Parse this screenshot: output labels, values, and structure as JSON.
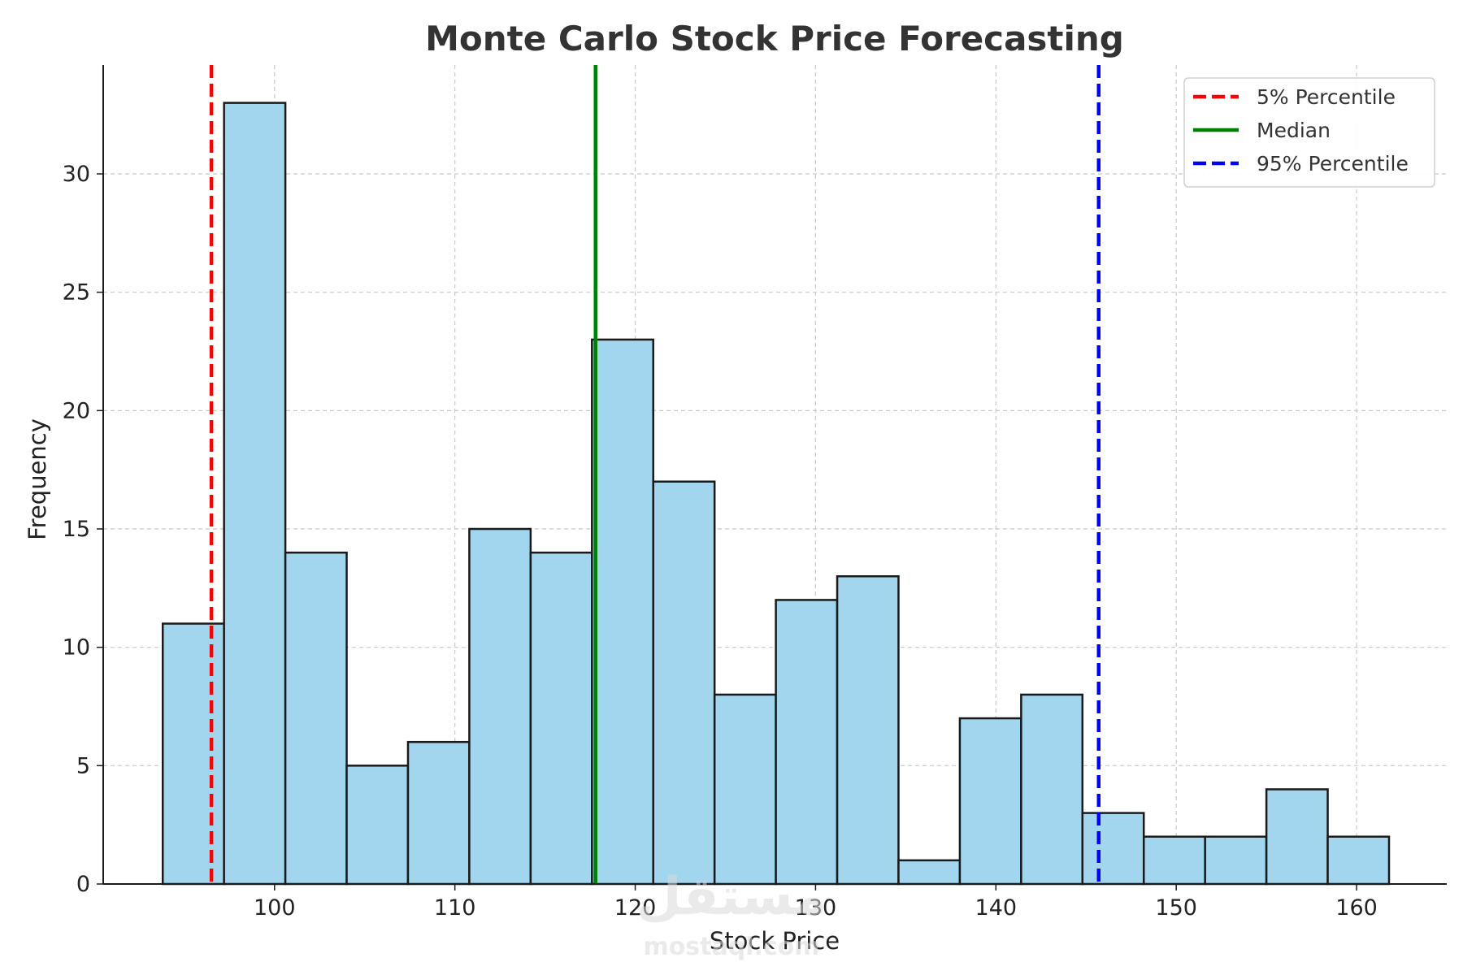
{
  "chart_data": {
    "type": "bar",
    "subtype": "histogram",
    "title": "Monte Carlo Stock Price Forecasting",
    "xlabel": "Stock Price",
    "ylabel": "Frequency",
    "xlim": [
      90.5,
      165.0
    ],
    "ylim": [
      0,
      34.6
    ],
    "xticks": [
      100,
      110,
      120,
      130,
      140,
      150,
      160
    ],
    "yticks": [
      0,
      5,
      10,
      15,
      20,
      25,
      30
    ],
    "grid": true,
    "bar_color": "#a1d6ee",
    "edge_color": "#1a1a1a",
    "bins": [
      {
        "start": 93.8,
        "end": 97.2,
        "count": 11
      },
      {
        "start": 97.2,
        "end": 100.6,
        "count": 33
      },
      {
        "start": 100.6,
        "end": 104.0,
        "count": 14
      },
      {
        "start": 104.0,
        "end": 107.4,
        "count": 5
      },
      {
        "start": 107.4,
        "end": 110.8,
        "count": 6
      },
      {
        "start": 110.8,
        "end": 114.2,
        "count": 15
      },
      {
        "start": 114.2,
        "end": 117.6,
        "count": 14
      },
      {
        "start": 117.6,
        "end": 121.0,
        "count": 23
      },
      {
        "start": 121.0,
        "end": 124.4,
        "count": 17
      },
      {
        "start": 124.4,
        "end": 127.8,
        "count": 8
      },
      {
        "start": 127.8,
        "end": 131.2,
        "count": 12
      },
      {
        "start": 131.2,
        "end": 134.6,
        "count": 13
      },
      {
        "start": 134.6,
        "end": 138.0,
        "count": 1
      },
      {
        "start": 138.0,
        "end": 141.4,
        "count": 7
      },
      {
        "start": 141.4,
        "end": 144.8,
        "count": 8
      },
      {
        "start": 144.8,
        "end": 148.2,
        "count": 3
      },
      {
        "start": 148.2,
        "end": 151.6,
        "count": 2
      },
      {
        "start": 151.6,
        "end": 155.0,
        "count": 2
      },
      {
        "start": 155.0,
        "end": 158.4,
        "count": 4
      },
      {
        "start": 158.4,
        "end": 161.8,
        "count": 2
      }
    ],
    "reference_lines": [
      {
        "name": "5% Percentile",
        "x": 96.5,
        "color": "#ff0000",
        "style": "dashed"
      },
      {
        "name": "Median",
        "x": 117.8,
        "color": "#008000",
        "style": "solid"
      },
      {
        "name": "95% Percentile",
        "x": 145.7,
        "color": "#0000ff",
        "style": "dashed"
      }
    ],
    "legend": {
      "placement": "top-right",
      "entries": [
        "5% Percentile",
        "Median",
        "95% Percentile"
      ]
    }
  },
  "watermark": {
    "arabic": "مستقل",
    "latin": "mostaql.com"
  }
}
